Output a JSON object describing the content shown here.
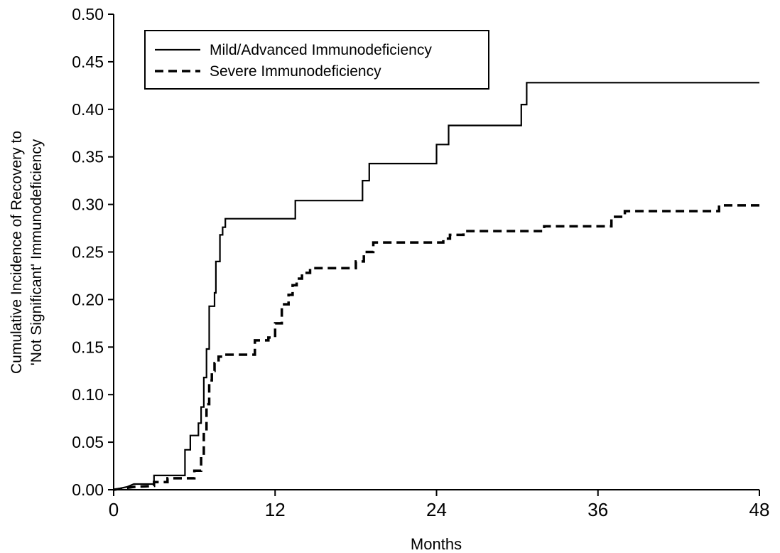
{
  "chart_data": {
    "type": "line",
    "title": "",
    "xlabel": "Months",
    "ylabel_lines": [
      "Cumulative Incidence of Recovery to",
      "'Not Significant' Immunodeficiency"
    ],
    "xlim": [
      0,
      48
    ],
    "ylim": [
      0,
      0.5
    ],
    "x_ticks": [
      0,
      12,
      24,
      36,
      48
    ],
    "x_tick_labels": [
      "0",
      "12",
      "24",
      "36",
      "48"
    ],
    "y_ticks": [
      0,
      0.05,
      0.1,
      0.15,
      0.2,
      0.25,
      0.3,
      0.35,
      0.4,
      0.45,
      0.5
    ],
    "y_tick_labels": [
      "0.00",
      "0.05",
      "0.10",
      "0.15",
      "0.20",
      "0.25",
      "0.30",
      "0.35",
      "0.40",
      "0.45",
      "0.50"
    ],
    "grid": false,
    "legend_position": "top-left",
    "series": [
      {
        "name": "Mild/Advanced Immunodeficiency",
        "style": "solid",
        "color": "#000000",
        "step": true,
        "points": [
          [
            0,
            0
          ],
          [
            1,
            0.003
          ],
          [
            1.5,
            0.006
          ],
          [
            3,
            0.006
          ],
          [
            3,
            0.015
          ],
          [
            5.3,
            0.015
          ],
          [
            5.3,
            0.042
          ],
          [
            5.7,
            0.042
          ],
          [
            5.7,
            0.057
          ],
          [
            6.3,
            0.057
          ],
          [
            6.3,
            0.07
          ],
          [
            6.5,
            0.07
          ],
          [
            6.5,
            0.087
          ],
          [
            6.7,
            0.087
          ],
          [
            6.7,
            0.118
          ],
          [
            6.9,
            0.118
          ],
          [
            6.9,
            0.148
          ],
          [
            7.1,
            0.148
          ],
          [
            7.1,
            0.193
          ],
          [
            7.5,
            0.193
          ],
          [
            7.5,
            0.207
          ],
          [
            7.6,
            0.207
          ],
          [
            7.6,
            0.24
          ],
          [
            7.9,
            0.24
          ],
          [
            7.9,
            0.268
          ],
          [
            8.1,
            0.268
          ],
          [
            8.1,
            0.276
          ],
          [
            8.3,
            0.276
          ],
          [
            8.3,
            0.285
          ],
          [
            13.5,
            0.285
          ],
          [
            13.5,
            0.304
          ],
          [
            18.5,
            0.304
          ],
          [
            18.5,
            0.325
          ],
          [
            19,
            0.325
          ],
          [
            19,
            0.343
          ],
          [
            24,
            0.343
          ],
          [
            24,
            0.363
          ],
          [
            24.9,
            0.363
          ],
          [
            24.9,
            0.383
          ],
          [
            30.3,
            0.383
          ],
          [
            30.3,
            0.405
          ],
          [
            30.7,
            0.405
          ],
          [
            30.7,
            0.428
          ],
          [
            48,
            0.428
          ]
        ]
      },
      {
        "name": "Severe Immunodeficiency",
        "style": "dashed",
        "color": "#000000",
        "step": true,
        "points": [
          [
            0,
            0
          ],
          [
            1.5,
            0.003
          ],
          [
            3,
            0.004
          ],
          [
            3,
            0.008
          ],
          [
            4,
            0.008
          ],
          [
            4,
            0.012
          ],
          [
            6,
            0.012
          ],
          [
            6,
            0.02
          ],
          [
            6.5,
            0.02
          ],
          [
            6.5,
            0.035
          ],
          [
            6.7,
            0.035
          ],
          [
            6.7,
            0.06
          ],
          [
            6.9,
            0.06
          ],
          [
            6.9,
            0.09
          ],
          [
            7.1,
            0.09
          ],
          [
            7.1,
            0.115
          ],
          [
            7.3,
            0.115
          ],
          [
            7.3,
            0.125
          ],
          [
            7.5,
            0.125
          ],
          [
            7.5,
            0.133
          ],
          [
            7.8,
            0.133
          ],
          [
            7.8,
            0.14
          ],
          [
            8.2,
            0.14
          ],
          [
            8.2,
            0.142
          ],
          [
            10.5,
            0.142
          ],
          [
            10.5,
            0.157
          ],
          [
            11.5,
            0.157
          ],
          [
            11.5,
            0.16
          ],
          [
            12,
            0.16
          ],
          [
            12,
            0.175
          ],
          [
            12.5,
            0.175
          ],
          [
            12.5,
            0.195
          ],
          [
            13,
            0.195
          ],
          [
            13,
            0.205
          ],
          [
            13.3,
            0.205
          ],
          [
            13.3,
            0.215
          ],
          [
            13.6,
            0.215
          ],
          [
            13.6,
            0.222
          ],
          [
            14,
            0.222
          ],
          [
            14,
            0.228
          ],
          [
            14.6,
            0.228
          ],
          [
            14.6,
            0.233
          ],
          [
            18,
            0.233
          ],
          [
            18,
            0.24
          ],
          [
            18.6,
            0.24
          ],
          [
            18.6,
            0.25
          ],
          [
            19.3,
            0.25
          ],
          [
            19.3,
            0.26
          ],
          [
            24.5,
            0.26
          ],
          [
            24.5,
            0.264
          ],
          [
            25,
            0.264
          ],
          [
            25,
            0.268
          ],
          [
            26,
            0.268
          ],
          [
            26,
            0.272
          ],
          [
            32,
            0.272
          ],
          [
            32,
            0.277
          ],
          [
            37,
            0.277
          ],
          [
            37,
            0.287
          ],
          [
            38,
            0.287
          ],
          [
            38,
            0.293
          ],
          [
            45,
            0.293
          ],
          [
            45,
            0.299
          ],
          [
            48,
            0.299
          ]
        ]
      }
    ]
  }
}
